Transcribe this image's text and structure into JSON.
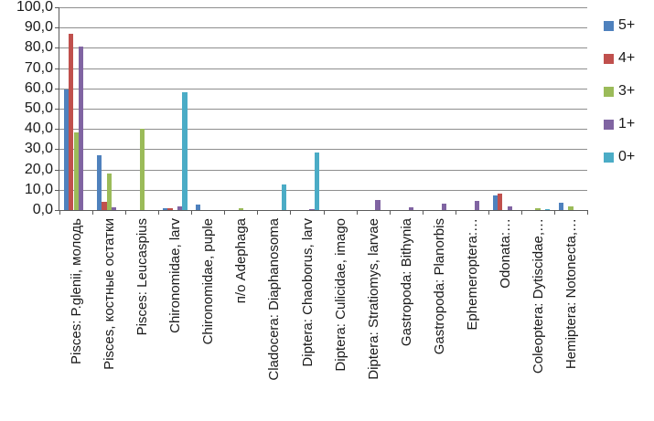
{
  "chart_data": {
    "type": "bar",
    "title": "",
    "xlabel": "",
    "ylabel": "",
    "categories": [
      "Pisces: P.glenii, молодь",
      "Pisces, костные остатки",
      "Pisces: Leucaspius",
      "Chironomidae, larv",
      "Chironomidae, puple",
      "п/о Adephaga",
      "Cladocera: Diaphanosoma",
      "Diptera: Chaoborus, larv",
      "Diptera: Culicidae, imago",
      "Diptera: Stratiomys, larvae",
      "Gastropoda: Bithynia",
      "Gastropoda: Planorbis",
      "Ephemeroptera:…",
      "Odonata:…",
      "Coleoptera: Dytiscidae,…",
      "Hemiptera: Notonecta,…"
    ],
    "series": [
      {
        "name": "5+",
        "color": "#4F81BD",
        "values": [
          59.5,
          27,
          0,
          1,
          2.5,
          0,
          0,
          0,
          0,
          0,
          0,
          0,
          0,
          7,
          0,
          3.7
        ]
      },
      {
        "name": "4+",
        "color": "#C0504D",
        "values": [
          87,
          4,
          0,
          0.8,
          0,
          0,
          0,
          0,
          0,
          0,
          0,
          0,
          0,
          8,
          0,
          0
        ]
      },
      {
        "name": "3+",
        "color": "#9BBB59",
        "values": [
          38.5,
          18,
          40,
          0,
          0,
          0.8,
          0,
          0,
          0,
          0,
          0,
          0,
          0,
          0,
          0.8,
          1.8
        ]
      },
      {
        "name": "1+",
        "color": "#8064A2",
        "values": [
          80.5,
          1.2,
          0,
          2,
          0,
          0,
          0,
          0.5,
          0,
          4.8,
          1.5,
          3,
          4.5,
          1.8,
          0,
          0
        ]
      },
      {
        "name": "0+",
        "color": "#4BACC6",
        "values": [
          0,
          0,
          0,
          58,
          0,
          0,
          12.5,
          28.5,
          0,
          0,
          0,
          0,
          0,
          0,
          0.6,
          0
        ]
      }
    ],
    "ylim": [
      0,
      100
    ],
    "y_tick_step": 10,
    "y_tick_labels": [
      "0,0",
      "10,0",
      "20,0",
      "30,0",
      "40,0",
      "50,0",
      "60,0",
      "70,0",
      "80,0",
      "90,0",
      "100,0"
    ],
    "grid": "horizontal",
    "legend_position": "right",
    "decimal_separator": ","
  },
  "colors": {
    "background": "#ffffff",
    "gridline": "#8e8e8e",
    "axis": "#5a5a5a",
    "text": "#1a1a1a"
  }
}
